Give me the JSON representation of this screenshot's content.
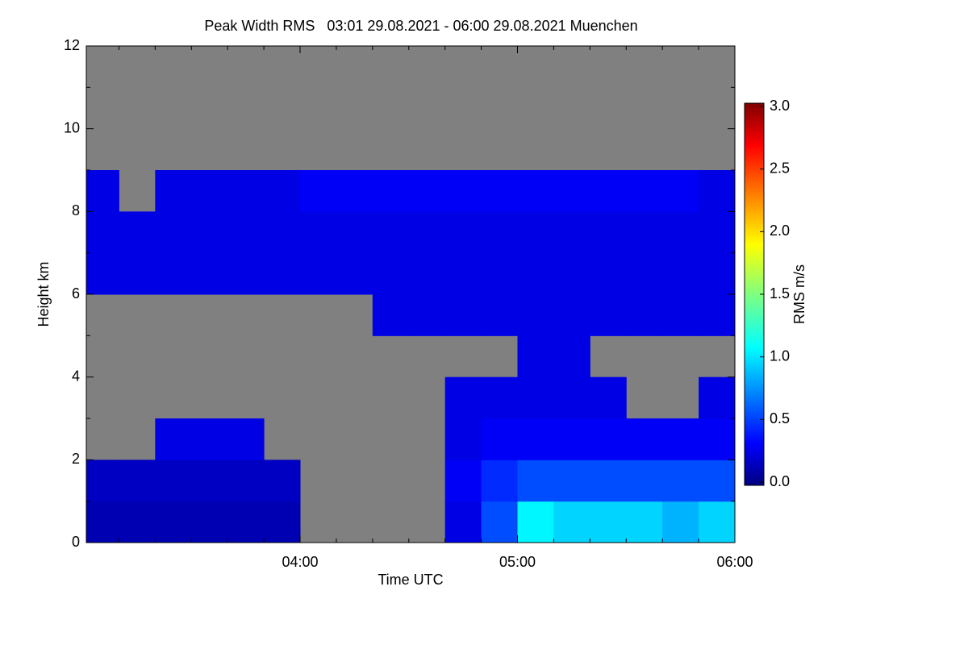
{
  "chart_data": {
    "type": "heatmap",
    "title": "Peak Width RMS   03:01 29.08.2021 - 06:00 29.08.2021 Muenchen",
    "xlabel": "Time UTC",
    "ylabel": "Height km",
    "colorbar_label": "RMS m/s",
    "xlim": [
      181,
      360
    ],
    "xticks": [
      {
        "value": 240,
        "label": "04:00"
      },
      {
        "value": 300,
        "label": "05:00"
      },
      {
        "value": 360,
        "label": "06:00"
      }
    ],
    "xminorticks": [
      190,
      200,
      210,
      220,
      230,
      250,
      260,
      270,
      280,
      290,
      310,
      320,
      330,
      340,
      350
    ],
    "ylim": [
      0,
      12
    ],
    "yticks": [
      0,
      2,
      4,
      6,
      8,
      10,
      12
    ],
    "yminorticks": [
      1,
      3,
      5,
      7,
      9,
      11
    ],
    "zlim": [
      0,
      3
    ],
    "zticks": [
      {
        "value": 0,
        "label": "0.0"
      },
      {
        "value": 0.5,
        "label": "0.5"
      },
      {
        "value": 1,
        "label": "1.0"
      },
      {
        "value": 1.5,
        "label": "1.5"
      },
      {
        "value": 2,
        "label": "2.0"
      },
      {
        "value": 2.5,
        "label": "2.5"
      },
      {
        "value": 3,
        "label": "3.0"
      }
    ],
    "colormap": "jet",
    "missing_color": "#808080",
    "x_bins": [
      181,
      190,
      200,
      210,
      220,
      230,
      240,
      250,
      260,
      270,
      280,
      290,
      300,
      310,
      320,
      330,
      340,
      350,
      360
    ],
    "y_bins": [
      0,
      1,
      2,
      3,
      4,
      5,
      6,
      7,
      8,
      9,
      10,
      11,
      12
    ],
    "z": [
      [
        0.15,
        0.15,
        0.15,
        0.15,
        0.15,
        0.15,
        null,
        null,
        null,
        null,
        0.3,
        0.6,
        1.1,
        1.0,
        1.0,
        1.0,
        0.9,
        1.0
      ],
      [
        0.2,
        0.2,
        0.2,
        0.2,
        0.2,
        0.2,
        null,
        null,
        null,
        null,
        0.35,
        0.5,
        0.6,
        0.6,
        0.6,
        0.6,
        0.6,
        0.6
      ],
      [
        null,
        null,
        0.3,
        0.3,
        0.3,
        null,
        null,
        null,
        null,
        null,
        0.3,
        0.35,
        0.35,
        0.35,
        0.35,
        0.35,
        0.35,
        0.35
      ],
      [
        null,
        null,
        null,
        null,
        null,
        null,
        null,
        null,
        null,
        null,
        0.3,
        0.3,
        0.3,
        0.3,
        0.3,
        null,
        null,
        0.3
      ],
      [
        null,
        null,
        null,
        null,
        null,
        null,
        null,
        null,
        null,
        null,
        null,
        null,
        0.3,
        0.3,
        null,
        null,
        null,
        null
      ],
      [
        null,
        null,
        null,
        null,
        null,
        null,
        null,
        null,
        0.3,
        0.3,
        0.3,
        0.3,
        0.3,
        0.3,
        0.3,
        0.3,
        0.3,
        0.3
      ],
      [
        0.3,
        0.3,
        0.3,
        0.3,
        0.3,
        0.3,
        0.3,
        0.3,
        0.3,
        0.3,
        0.3,
        0.3,
        0.3,
        0.3,
        0.3,
        0.3,
        0.3,
        0.3
      ],
      [
        0.3,
        0.3,
        0.3,
        0.3,
        0.3,
        0.3,
        0.3,
        0.3,
        0.3,
        0.3,
        0.3,
        0.3,
        0.3,
        0.3,
        0.3,
        0.3,
        0.3,
        0.3
      ],
      [
        0.3,
        null,
        0.3,
        0.3,
        0.3,
        0.3,
        0.35,
        0.35,
        0.35,
        0.35,
        0.35,
        0.35,
        0.35,
        0.35,
        0.35,
        0.35,
        0.35,
        0.3
      ],
      [
        null,
        null,
        null,
        null,
        null,
        null,
        null,
        null,
        null,
        null,
        null,
        null,
        null,
        null,
        null,
        null,
        null,
        null
      ],
      [
        null,
        null,
        null,
        null,
        null,
        null,
        null,
        null,
        null,
        null,
        null,
        null,
        null,
        null,
        null,
        null,
        null,
        null
      ],
      [
        null,
        null,
        null,
        null,
        null,
        null,
        null,
        null,
        null,
        null,
        null,
        null,
        null,
        null,
        null,
        null,
        null,
        null
      ]
    ]
  }
}
